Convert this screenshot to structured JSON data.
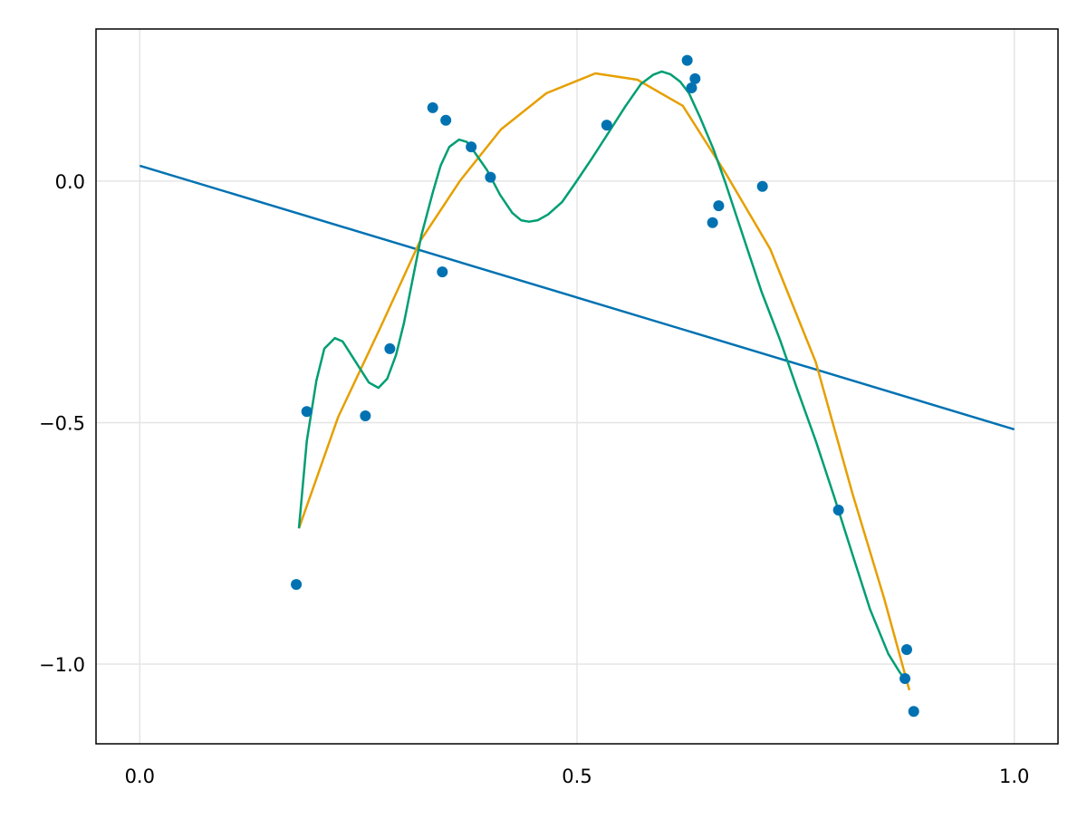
{
  "chart_data": {
    "type": "line",
    "title": "",
    "xlabel": "",
    "ylabel": "",
    "xlim": [
      -0.05,
      1.05
    ],
    "ylim": [
      -1.165,
      0.315
    ],
    "grid": true,
    "legend": "none",
    "x_ticks": [
      0.0,
      0.5,
      1.0
    ],
    "x_tick_labels": [
      "0.0",
      "0.5",
      "1.0"
    ],
    "y_ticks": [
      0.0,
      -0.5,
      -1.0
    ],
    "y_tick_labels": [
      "0.0",
      "−0.5",
      "−1.0"
    ],
    "colors": {
      "scatter": "#0072b2",
      "linear": "#0072b2",
      "quadratic": "#e69f00",
      "wiggly": "#009e73",
      "grid": "#e5e5e5"
    },
    "scatter": {
      "x": [
        0.179,
        0.191,
        0.258,
        0.286,
        0.335,
        0.35,
        0.346,
        0.379,
        0.401,
        0.534,
        0.626,
        0.635,
        0.631,
        0.662,
        0.655,
        0.712,
        0.799,
        0.877,
        0.875,
        0.885
      ],
      "y": [
        -0.835,
        -0.477,
        -0.486,
        -0.347,
        0.152,
        0.126,
        -0.188,
        0.071,
        0.008,
        0.116,
        0.25,
        0.212,
        0.193,
        -0.051,
        -0.086,
        -0.011,
        -0.681,
        -0.97,
        -1.03,
        -1.098
      ]
    },
    "series": [
      {
        "x": [
          0.0,
          1.0
        ],
        "y": [
          0.032,
          -0.514
        ]
      },
      {
        "x": [
          0.182,
          0.227,
          0.276,
          0.32,
          0.366,
          0.413,
          0.465,
          0.521,
          0.569,
          0.621,
          0.669,
          0.721,
          0.773,
          0.815,
          0.851,
          0.88
        ],
        "y": [
          -0.719,
          -0.488,
          -0.3,
          -0.126,
          0.0,
          0.107,
          0.182,
          0.223,
          0.21,
          0.156,
          0.019,
          -0.141,
          -0.375,
          -0.647,
          -0.863,
          -1.054
        ]
      },
      {
        "x": [
          0.182,
          0.191,
          0.202,
          0.211,
          0.223,
          0.232,
          0.262,
          0.273,
          0.283,
          0.293,
          0.302,
          0.322,
          0.335,
          0.344,
          0.354,
          0.365,
          0.374,
          0.382,
          0.397,
          0.412,
          0.426,
          0.436,
          0.445,
          0.455,
          0.467,
          0.483,
          0.498,
          0.517,
          0.537,
          0.555,
          0.573,
          0.587,
          0.597,
          0.607,
          0.618,
          0.628,
          0.641,
          0.656,
          0.669,
          0.711,
          0.732,
          0.752,
          0.773,
          0.794,
          0.815,
          0.835,
          0.856,
          0.869,
          0.877
        ],
        "y": [
          -0.719,
          -0.538,
          -0.413,
          -0.347,
          -0.325,
          -0.332,
          -0.417,
          -0.428,
          -0.409,
          -0.36,
          -0.295,
          -0.113,
          -0.024,
          0.032,
          0.071,
          0.086,
          0.081,
          0.062,
          0.023,
          -0.028,
          -0.066,
          -0.081,
          -0.084,
          -0.081,
          -0.069,
          -0.043,
          -0.004,
          0.047,
          0.103,
          0.154,
          0.201,
          0.22,
          0.227,
          0.221,
          0.206,
          0.182,
          0.131,
          0.066,
          0.0,
          -0.229,
          -0.328,
          -0.432,
          -0.538,
          -0.653,
          -0.773,
          -0.886,
          -0.979,
          -1.017,
          -1.036
        ]
      }
    ]
  }
}
